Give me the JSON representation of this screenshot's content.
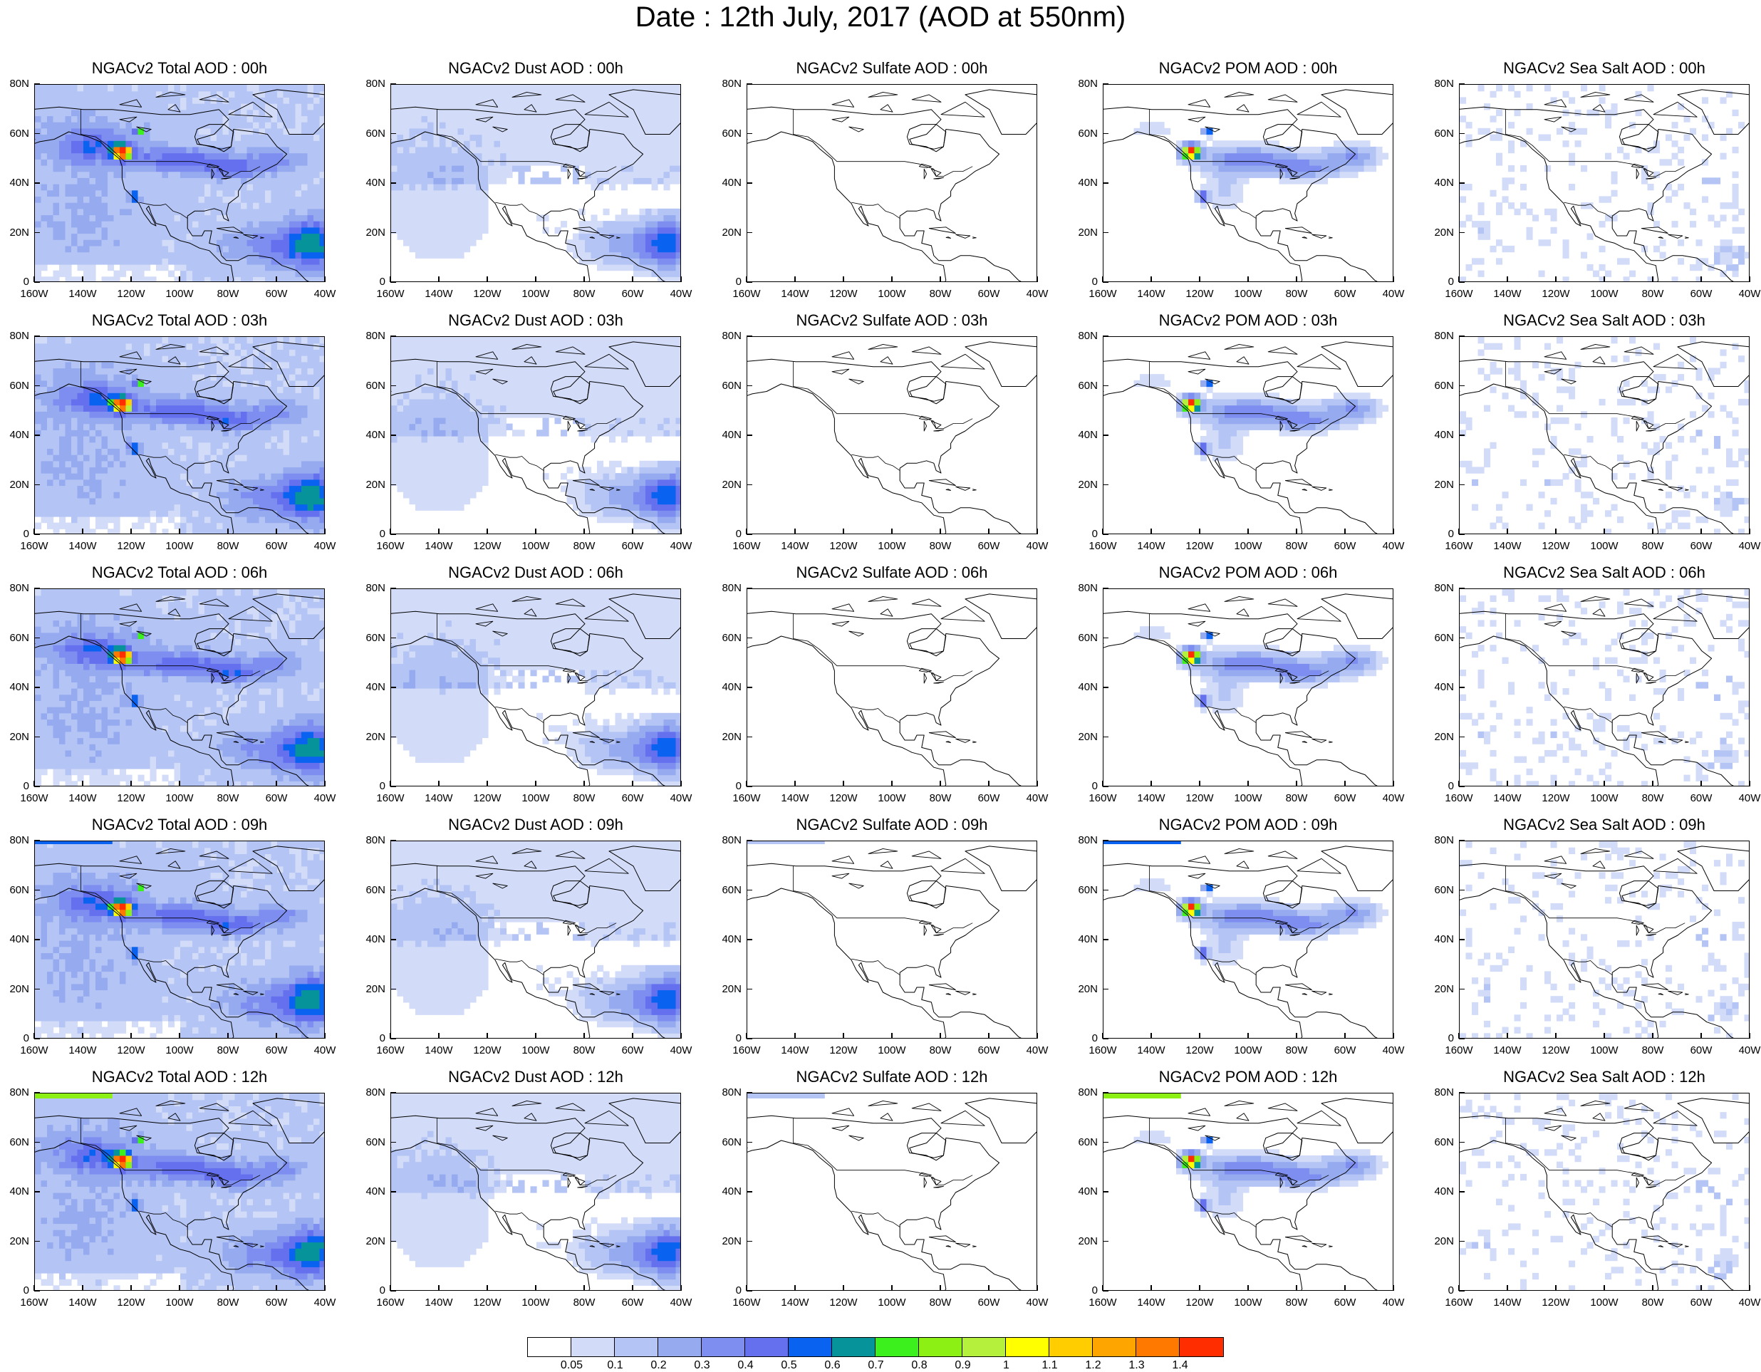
{
  "title": "Date : 12th July, 2017 (AOD at 550nm)",
  "panel_titles": [
    [
      "NGACv2 Total AOD : 00h",
      "NGACv2 Dust AOD : 00h",
      "NGACv2 Sulfate AOD : 00h",
      "NGACv2 POM AOD : 00h",
      "NGACv2 Sea Salt AOD : 00h"
    ],
    [
      "NGACv2 Total AOD : 03h",
      "NGACv2 Dust AOD : 03h",
      "NGACv2 Sulfate AOD : 03h",
      "NGACv2 POM AOD : 03h",
      "NGACv2 Sea Salt AOD : 03h"
    ],
    [
      "NGACv2 Total AOD : 06h",
      "NGACv2 Dust AOD : 06h",
      "NGACv2 Sulfate AOD : 06h",
      "NGACv2 POM AOD : 06h",
      "NGACv2 Sea Salt AOD : 06h"
    ],
    [
      "NGACv2 Total AOD : 09h",
      "NGACv2 Dust AOD : 09h",
      "NGACv2 Sulfate AOD : 09h",
      "NGACv2 POM AOD : 09h",
      "NGACv2 Sea Salt  AOD : 09h"
    ],
    [
      "NGACv2 Total AOD  : 12h",
      "NGACv2 Dust AOD : 12h",
      "NGACv2 Sulfate AOD : 12h",
      "NGACv2 POM  AOD : 12h",
      "NGACv2 Sea Salt  AOD : 12h"
    ]
  ],
  "lat_labels": [
    "80N",
    "60N",
    "40N",
    "20N",
    "0"
  ],
  "lon_labels": [
    "160W",
    "140W",
    "120W",
    "100W",
    "80W",
    "60W",
    "40W"
  ],
  "colorbar": {
    "colors": [
      "#ffffff",
      "#d2dcf8",
      "#b4c4f4",
      "#96aaf0",
      "#7d8ef0",
      "#6470ee",
      "#0a62f0",
      "#07939a",
      "#3cf01e",
      "#8cf014",
      "#b4f03c",
      "#ffff00",
      "#ffcd00",
      "#ffa500",
      "#ff7800",
      "#ff2d00"
    ],
    "labels": [
      "0.05",
      "0.1",
      "0.2",
      "0.3",
      "0.4",
      "0.5",
      "0.6",
      "0.7",
      "0.8",
      "0.9",
      "1",
      "1.1",
      "1.2",
      "1.3",
      "1.4"
    ]
  },
  "map": {
    "lon_range": [
      -160,
      -40
    ],
    "lat_range": [
      0,
      80
    ],
    "coastline_color": "#000000"
  }
}
